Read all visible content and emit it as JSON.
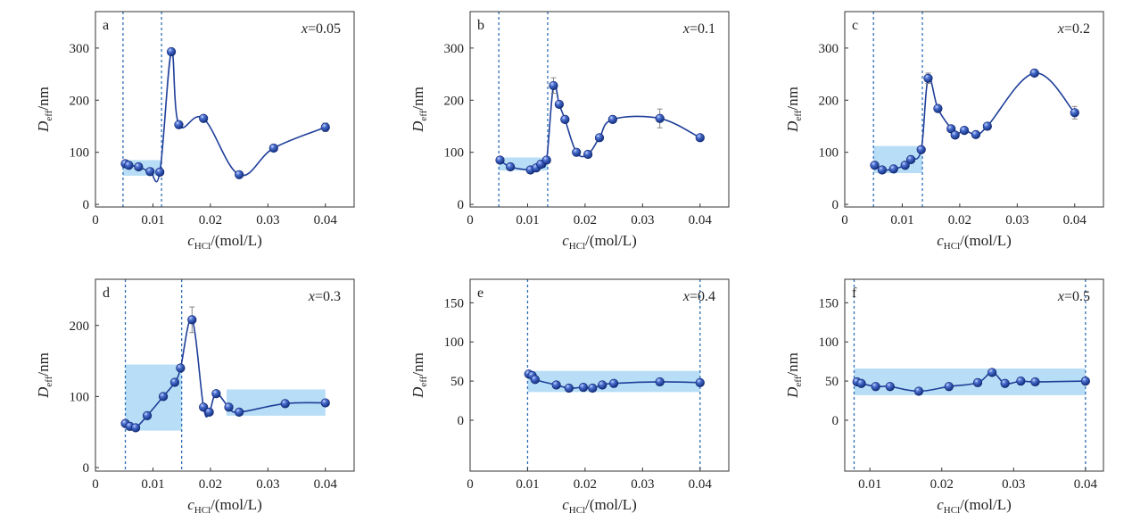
{
  "chart_data": [
    {
      "type": "line",
      "panel_letter": "a",
      "annotation": {
        "var": "x",
        "text": "=0.05"
      },
      "xlabel": {
        "main": "c",
        "sub": "HCl",
        "rest": "/(mol/L)"
      },
      "ylabel": {
        "main": "D",
        "sub": "eff",
        "rest": "/nm"
      },
      "xlim": [
        0,
        0.045
      ],
      "ylim": [
        -5,
        370
      ],
      "xticks": [
        0,
        0.01,
        0.02,
        0.03,
        0.04
      ],
      "xtick_labels": [
        "0",
        "0.01",
        "0.02",
        "0.03",
        "0.04"
      ],
      "yticks": [
        0,
        100,
        200,
        300
      ],
      "ytick_labels": [
        "0",
        "100",
        "200",
        "300"
      ],
      "vlines": [
        0.0048,
        0.0115
      ],
      "bands": [
        {
          "x": [
            0.0048,
            0.0115
          ],
          "y": [
            55,
            85
          ]
        }
      ],
      "series": [
        {
          "x": [
            0.0052,
            0.0058,
            0.0075,
            0.0095,
            0.0112,
            0.0132,
            0.0145,
            0.0188,
            0.025,
            0.031,
            0.04
          ],
          "y": [
            78,
            75,
            72,
            63,
            62,
            293,
            153,
            165,
            57,
            108,
            148
          ],
          "err": [
            0,
            0,
            0,
            0,
            0,
            0,
            0,
            0,
            0,
            0,
            8
          ]
        }
      ]
    },
    {
      "type": "line",
      "panel_letter": "b",
      "annotation": {
        "var": "x",
        "text": "=0.1"
      },
      "xlabel": {
        "main": "c",
        "sub": "HCl",
        "rest": "/(mol/L)"
      },
      "ylabel": {
        "main": "D",
        "sub": "eff",
        "rest": "/nm"
      },
      "xlim": [
        0,
        0.045
      ],
      "ylim": [
        -5,
        370
      ],
      "xticks": [
        0,
        0.01,
        0.02,
        0.03,
        0.04
      ],
      "xtick_labels": [
        "0",
        "0.01",
        "0.02",
        "0.03",
        "0.04"
      ],
      "yticks": [
        0,
        100,
        200,
        300
      ],
      "ytick_labels": [
        "0",
        "100",
        "200",
        "300"
      ],
      "vlines": [
        0.005,
        0.0135
      ],
      "bands": [
        {
          "x": [
            0.005,
            0.0135
          ],
          "y": [
            65,
            90
          ]
        }
      ],
      "series": [
        {
          "x": [
            0.0052,
            0.007,
            0.0105,
            0.0115,
            0.0123,
            0.0133,
            0.0145,
            0.0155,
            0.0165,
            0.0185,
            0.0205,
            0.0225,
            0.0248,
            0.033,
            0.04
          ],
          "y": [
            85,
            72,
            66,
            70,
            77,
            85,
            228,
            192,
            163,
            100,
            96,
            128,
            163,
            165,
            128
          ],
          "err": [
            0,
            0,
            0,
            0,
            0,
            0,
            15,
            0,
            0,
            0,
            0,
            0,
            0,
            18,
            0
          ]
        }
      ]
    },
    {
      "type": "line",
      "panel_letter": "c",
      "annotation": {
        "var": "x",
        "text": "=0.2"
      },
      "xlabel": {
        "main": "c",
        "sub": "HCl",
        "rest": "/(mol/L)"
      },
      "ylabel": {
        "main": "D",
        "sub": "eff",
        "rest": "/nm"
      },
      "xlim": [
        0,
        0.045
      ],
      "ylim": [
        -5,
        370
      ],
      "xticks": [
        0,
        0.01,
        0.02,
        0.03,
        0.04
      ],
      "xtick_labels": [
        "0",
        "0.01",
        "0.02",
        "0.03",
        "0.04"
      ],
      "yticks": [
        0,
        100,
        200,
        300
      ],
      "ytick_labels": [
        "0",
        "100",
        "200",
        "300"
      ],
      "vlines": [
        0.005,
        0.0135
      ],
      "bands": [
        {
          "x": [
            0.005,
            0.0135
          ],
          "y": [
            60,
            112
          ]
        }
      ],
      "series": [
        {
          "x": [
            0.0052,
            0.0065,
            0.0085,
            0.0105,
            0.0115,
            0.0133,
            0.0145,
            0.0162,
            0.0185,
            0.0192,
            0.0208,
            0.0228,
            0.0248,
            0.033,
            0.04
          ],
          "y": [
            75,
            66,
            68,
            75,
            86,
            105,
            242,
            184,
            145,
            133,
            142,
            134,
            150,
            252,
            176
          ],
          "err": [
            0,
            0,
            0,
            0,
            0,
            0,
            10,
            0,
            0,
            0,
            0,
            0,
            0,
            0,
            12
          ]
        }
      ]
    },
    {
      "type": "line",
      "panel_letter": "d",
      "annotation": {
        "var": "x",
        "text": "=0.3"
      },
      "xlabel": {
        "main": "c",
        "sub": "HCl",
        "rest": "/(mol/L)"
      },
      "ylabel": {
        "main": "D",
        "sub": "eff",
        "rest": "/nm"
      },
      "xlim": [
        0,
        0.045
      ],
      "ylim": [
        -5,
        265
      ],
      "xticks": [
        0,
        0.01,
        0.02,
        0.03,
        0.04
      ],
      "xtick_labels": [
        "0",
        "0.01",
        "0.02",
        "0.03",
        "0.04"
      ],
      "yticks": [
        0,
        100,
        200
      ],
      "ytick_labels": [
        "0",
        "100",
        "200"
      ],
      "vlines": [
        0.0052,
        0.015
      ],
      "bands": [
        {
          "x": [
            0.0052,
            0.015
          ],
          "y": [
            52,
            145
          ]
        },
        {
          "x": [
            0.0228,
            0.04
          ],
          "y": [
            73,
            110
          ]
        }
      ],
      "series": [
        {
          "x": [
            0.0052,
            0.006,
            0.007,
            0.009,
            0.0118,
            0.0138,
            0.0148,
            0.0168,
            0.0188,
            0.0198,
            0.021,
            0.0232,
            0.025,
            0.033,
            0.04
          ],
          "y": [
            62,
            58,
            56,
            73,
            100,
            120,
            140,
            208,
            85,
            78,
            104,
            85,
            78,
            90,
            91
          ],
          "err": [
            0,
            0,
            0,
            0,
            0,
            0,
            0,
            18,
            0,
            0,
            0,
            0,
            0,
            0,
            0
          ]
        }
      ]
    },
    {
      "type": "line",
      "panel_letter": "e",
      "annotation": {
        "var": "x",
        "text": "=0.4"
      },
      "xlabel": {
        "main": "c",
        "sub": "HCl",
        "rest": "/(mol/L)"
      },
      "ylabel": {
        "main": "D",
        "sub": "eff",
        "rest": "/nm"
      },
      "xlim": [
        0,
        0.045
      ],
      "ylim": [
        -65,
        180
      ],
      "xticks": [
        0,
        0.01,
        0.02,
        0.03,
        0.04
      ],
      "xtick_labels": [
        "0",
        "0.01",
        "0.02",
        "0.03",
        "0.04"
      ],
      "yticks": [
        0,
        50,
        100,
        150
      ],
      "ytick_labels": [
        "0",
        "50",
        "100",
        "150"
      ],
      "vlines": [
        0.01,
        0.04
      ],
      "bands": [
        {
          "x": [
            0.01,
            0.04
          ],
          "y": [
            36,
            63
          ]
        }
      ],
      "series": [
        {
          "x": [
            0.0102,
            0.0108,
            0.0113,
            0.015,
            0.0172,
            0.0197,
            0.0213,
            0.023,
            0.025,
            0.033,
            0.04
          ],
          "y": [
            59,
            57,
            52,
            45,
            41,
            42,
            41,
            45,
            47,
            49,
            48
          ],
          "err": [
            0,
            0,
            0,
            0,
            0,
            0,
            0,
            0,
            0,
            0,
            0
          ]
        }
      ]
    },
    {
      "type": "line",
      "panel_letter": "f",
      "annotation": {
        "var": "x",
        "text": "=0.5"
      },
      "xlabel": {
        "main": "c",
        "sub": "HCl",
        "rest": "/(mol/L)"
      },
      "ylabel": {
        "main": "D",
        "sub": "eff",
        "rest": "/nm"
      },
      "xlim": [
        0.0065,
        0.0425
      ],
      "ylim": [
        -65,
        180
      ],
      "xticks": [
        0.01,
        0.02,
        0.03,
        0.04
      ],
      "xtick_labels": [
        "0.01",
        "0.02",
        "0.03",
        "0.04"
      ],
      "yticks": [
        0,
        50,
        100,
        150
      ],
      "ytick_labels": [
        "0",
        "50",
        "100",
        "150"
      ],
      "vlines": [
        0.0078,
        0.04
      ],
      "bands": [
        {
          "x": [
            0.0078,
            0.04
          ],
          "y": [
            32,
            66
          ]
        }
      ],
      "series": [
        {
          "x": [
            0.0082,
            0.0088,
            0.0108,
            0.0128,
            0.0168,
            0.021,
            0.025,
            0.027,
            0.0288,
            0.031,
            0.033,
            0.04
          ],
          "y": [
            49,
            47,
            43,
            43,
            37,
            43,
            48,
            61,
            47,
            50,
            49,
            50
          ],
          "err": [
            0,
            0,
            0,
            0,
            0,
            0,
            0,
            0,
            0,
            0,
            0,
            0
          ]
        }
      ]
    }
  ]
}
